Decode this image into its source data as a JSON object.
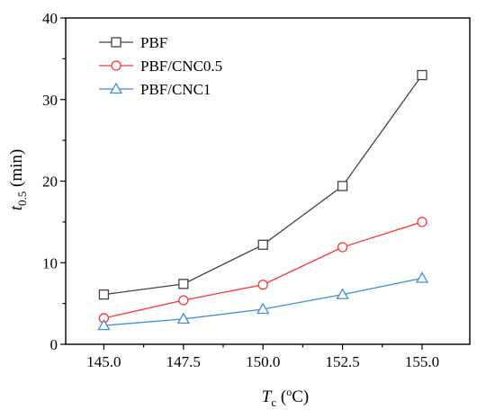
{
  "chart_data": {
    "type": "line",
    "x": [
      145.0,
      147.5,
      150.0,
      152.5,
      155.0
    ],
    "x_tick_labels": [
      "145.0",
      "147.5",
      "150.0",
      "152.5",
      "155.0"
    ],
    "y_ticks": [
      0,
      10,
      20,
      30,
      40
    ],
    "xlim": [
      143.8,
      156.5
    ],
    "ylim": [
      0,
      40
    ],
    "xlabel": {
      "main": "T",
      "sub": "c",
      "unit_open": " (",
      "unit_sup": "o",
      "unit_close": "C)"
    },
    "ylabel": {
      "main": "t",
      "sub": "0.5",
      "unit": " (min)"
    },
    "legend_position": "top-left",
    "grid": false,
    "series": [
      {
        "name": "PBF",
        "values": [
          6.1,
          7.4,
          12.2,
          19.4,
          33.0
        ],
        "color": "#444444",
        "marker": "square"
      },
      {
        "name": "PBF/CNC0.5",
        "values": [
          3.2,
          5.4,
          7.3,
          11.9,
          15.0
        ],
        "color": "#ff3333",
        "marker": "circle"
      },
      {
        "name": "PBF/CNC1",
        "values": [
          2.3,
          3.1,
          4.3,
          6.1,
          8.1
        ],
        "color": "#3d8fdc",
        "marker": "triangle"
      }
    ]
  }
}
